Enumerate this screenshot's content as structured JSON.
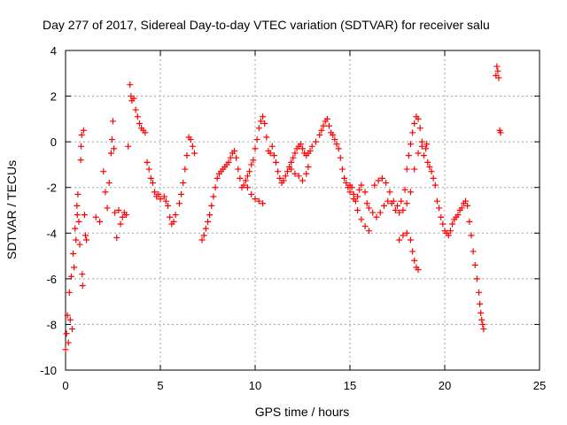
{
  "chart_data": {
    "type": "scatter",
    "title": "Day 277 of 2017, Sidereal Day-to-day VTEC variation (SDTVAR) for receiver salu",
    "xlabel": "GPS time / hours",
    "ylabel": "SDTVAR / TECUs",
    "xlim": [
      0,
      25
    ],
    "ylim": [
      -10,
      4
    ],
    "xticks": [
      0,
      5,
      10,
      15,
      20,
      25
    ],
    "yticks": [
      -10,
      -8,
      -6,
      -4,
      -2,
      0,
      2,
      4
    ],
    "grid": true,
    "marker": "+",
    "color": "#ff0000",
    "series": [
      {
        "name": "SDTVAR",
        "points": [
          [
            0.0,
            -9.1
          ],
          [
            0.05,
            -8.4
          ],
          [
            0.1,
            -7.6
          ],
          [
            0.15,
            -8.8
          ],
          [
            0.2,
            -6.6
          ],
          [
            0.25,
            -7.8
          ],
          [
            0.3,
            -5.9
          ],
          [
            0.35,
            -8.2
          ],
          [
            0.4,
            -4.9
          ],
          [
            0.45,
            -5.5
          ],
          [
            0.5,
            -3.8
          ],
          [
            0.55,
            -4.3
          ],
          [
            0.6,
            -2.8
          ],
          [
            0.62,
            -3.2
          ],
          [
            0.65,
            -2.3
          ],
          [
            0.7,
            -3.5
          ],
          [
            0.75,
            -4.5
          ],
          [
            0.8,
            -0.8
          ],
          [
            0.82,
            -0.2
          ],
          [
            0.85,
            0.3
          ],
          [
            0.88,
            -5.8
          ],
          [
            0.9,
            -6.3
          ],
          [
            0.95,
            0.5
          ],
          [
            1.0,
            -3.2
          ],
          [
            1.05,
            -4.1
          ],
          [
            1.1,
            -4.3
          ],
          [
            1.6,
            -3.3
          ],
          [
            1.8,
            -3.5
          ],
          [
            2.0,
            -1.3
          ],
          [
            2.1,
            -2.2
          ],
          [
            2.2,
            -2.9
          ],
          [
            2.3,
            -1.8
          ],
          [
            2.4,
            -0.5
          ],
          [
            2.45,
            0.1
          ],
          [
            2.5,
            0.9
          ],
          [
            2.55,
            -0.3
          ],
          [
            2.6,
            -3.1
          ],
          [
            2.7,
            -4.2
          ],
          [
            2.8,
            -3.0
          ],
          [
            2.9,
            -3.6
          ],
          [
            3.0,
            -3.3
          ],
          [
            3.1,
            -3.1
          ],
          [
            3.2,
            -3.2
          ],
          [
            3.3,
            -0.2
          ],
          [
            3.4,
            2.5
          ],
          [
            3.45,
            2.0
          ],
          [
            3.5,
            1.8
          ],
          [
            3.6,
            1.9
          ],
          [
            3.7,
            1.4
          ],
          [
            3.8,
            1.1
          ],
          [
            3.9,
            0.8
          ],
          [
            4.0,
            0.6
          ],
          [
            4.1,
            0.5
          ],
          [
            4.2,
            0.4
          ],
          [
            4.3,
            -0.9
          ],
          [
            4.4,
            -1.2
          ],
          [
            4.5,
            -1.6
          ],
          [
            4.6,
            -1.8
          ],
          [
            4.7,
            -2.2
          ],
          [
            4.8,
            -2.4
          ],
          [
            4.9,
            -2.3
          ],
          [
            5.0,
            -2.5
          ],
          [
            5.2,
            -2.4
          ],
          [
            5.3,
            -2.6
          ],
          [
            5.4,
            -2.8
          ],
          [
            5.5,
            -3.3
          ],
          [
            5.6,
            -3.6
          ],
          [
            5.7,
            -3.5
          ],
          [
            5.8,
            -3.2
          ],
          [
            6.0,
            -2.7
          ],
          [
            6.1,
            -2.3
          ],
          [
            6.2,
            -1.8
          ],
          [
            6.3,
            -1.2
          ],
          [
            6.4,
            -0.6
          ],
          [
            6.5,
            0.2
          ],
          [
            6.6,
            0.1
          ],
          [
            6.7,
            -0.2
          ],
          [
            6.8,
            -0.5
          ],
          [
            7.2,
            -4.3
          ],
          [
            7.3,
            -4.1
          ],
          [
            7.4,
            -3.8
          ],
          [
            7.5,
            -3.5
          ],
          [
            7.6,
            -3.2
          ],
          [
            7.7,
            -2.8
          ],
          [
            7.8,
            -2.4
          ],
          [
            7.9,
            -2.0
          ],
          [
            8.0,
            -1.6
          ],
          [
            8.1,
            -1.4
          ],
          [
            8.2,
            -1.3
          ],
          [
            8.3,
            -1.2
          ],
          [
            8.4,
            -1.1
          ],
          [
            8.5,
            -1.0
          ],
          [
            8.6,
            -0.9
          ],
          [
            8.7,
            -0.7
          ],
          [
            8.8,
            -0.5
          ],
          [
            8.9,
            -0.4
          ],
          [
            9.0,
            -0.7
          ],
          [
            9.1,
            -1.2
          ],
          [
            9.2,
            -1.6
          ],
          [
            9.3,
            -2.0
          ],
          [
            9.4,
            -1.9
          ],
          [
            9.5,
            -1.7
          ],
          [
            9.6,
            -1.5
          ],
          [
            9.7,
            -1.3
          ],
          [
            9.8,
            -1.0
          ],
          [
            9.9,
            -0.8
          ],
          [
            10.0,
            -0.3
          ],
          [
            10.1,
            0.1
          ],
          [
            10.2,
            0.6
          ],
          [
            10.3,
            0.9
          ],
          [
            10.4,
            1.1
          ],
          [
            10.5,
            0.8
          ],
          [
            10.6,
            0.2
          ],
          [
            10.7,
            -0.4
          ],
          [
            10.8,
            -0.5
          ],
          [
            10.9,
            -0.2
          ],
          [
            11.0,
            -0.6
          ],
          [
            11.1,
            -0.9
          ],
          [
            11.2,
            -1.3
          ],
          [
            11.3,
            -1.6
          ],
          [
            11.4,
            -1.8
          ],
          [
            11.5,
            -1.7
          ],
          [
            11.6,
            -1.5
          ],
          [
            11.7,
            -1.3
          ],
          [
            11.8,
            -1.1
          ],
          [
            11.9,
            -0.9
          ],
          [
            12.0,
            -0.7
          ],
          [
            12.1,
            -0.5
          ],
          [
            12.2,
            -0.3
          ],
          [
            12.3,
            -0.2
          ],
          [
            12.4,
            -0.1
          ],
          [
            12.5,
            -0.3
          ],
          [
            12.6,
            -0.5
          ],
          [
            12.7,
            -0.6
          ],
          [
            12.8,
            -0.5
          ],
          [
            12.9,
            -0.4
          ],
          [
            13.0,
            -0.2
          ],
          [
            13.2,
            0.0
          ],
          [
            13.4,
            0.3
          ],
          [
            13.5,
            0.5
          ],
          [
            13.6,
            0.7
          ],
          [
            13.7,
            0.9
          ],
          [
            13.8,
            1.0
          ],
          [
            13.9,
            0.7
          ],
          [
            14.0,
            0.4
          ],
          [
            14.1,
            0.3
          ],
          [
            14.2,
            0.1
          ],
          [
            14.3,
            -0.1
          ],
          [
            14.4,
            -0.3
          ],
          [
            14.5,
            -0.7
          ],
          [
            14.6,
            -1.2
          ],
          [
            14.7,
            -1.6
          ],
          [
            14.8,
            -1.8
          ],
          [
            14.9,
            -2.0
          ],
          [
            15.0,
            -2.2
          ],
          [
            15.1,
            -2.0
          ],
          [
            15.2,
            -2.3
          ],
          [
            15.3,
            -2.6
          ],
          [
            15.4,
            -2.4
          ],
          [
            15.5,
            -2.1
          ],
          [
            15.6,
            -1.9
          ],
          [
            15.8,
            -2.2
          ],
          [
            15.9,
            -2.7
          ],
          [
            16.0,
            -2.9
          ],
          [
            16.2,
            -3.1
          ],
          [
            16.4,
            -3.3
          ],
          [
            16.6,
            -3.1
          ],
          [
            16.8,
            -2.8
          ],
          [
            17.0,
            -2.6
          ],
          [
            17.2,
            -2.7
          ],
          [
            17.4,
            -3.0
          ],
          [
            17.6,
            -3.1
          ],
          [
            17.8,
            -3.0
          ],
          [
            18.0,
            -2.7
          ],
          [
            18.2,
            -2.2
          ],
          [
            18.4,
            -1.2
          ],
          [
            18.6,
            -0.5
          ],
          [
            18.8,
            0.0
          ],
          [
            9.6,
            -2.0
          ],
          [
            9.8,
            -2.3
          ],
          [
            10.0,
            -2.5
          ],
          [
            10.2,
            -2.6
          ],
          [
            10.4,
            -2.7
          ],
          [
            11.9,
            -1.2
          ],
          [
            12.1,
            -1.4
          ],
          [
            12.3,
            -1.5
          ],
          [
            12.5,
            -1.7
          ],
          [
            12.7,
            -1.4
          ],
          [
            12.8,
            -1.1
          ],
          [
            16.3,
            -1.9
          ],
          [
            16.5,
            -1.7
          ],
          [
            16.7,
            -1.6
          ],
          [
            16.9,
            -1.8
          ],
          [
            17.1,
            -2.2
          ],
          [
            17.3,
            -2.6
          ],
          [
            17.5,
            -2.8
          ],
          [
            17.7,
            -2.6
          ],
          [
            17.9,
            -2.1
          ],
          [
            15.0,
            -1.9
          ],
          [
            15.2,
            -2.5
          ],
          [
            15.4,
            -3.0
          ],
          [
            15.6,
            -3.4
          ],
          [
            15.8,
            -3.7
          ],
          [
            16.0,
            -3.9
          ],
          [
            17.6,
            -4.3
          ],
          [
            17.8,
            -4.1
          ],
          [
            18.0,
            -4.0
          ],
          [
            18.2,
            -4.3
          ],
          [
            18.3,
            -4.8
          ],
          [
            18.4,
            -5.2
          ],
          [
            18.5,
            -5.5
          ],
          [
            18.6,
            -5.6
          ],
          [
            18.0,
            -1.2
          ],
          [
            18.1,
            -0.6
          ],
          [
            18.2,
            -0.1
          ],
          [
            18.3,
            0.4
          ],
          [
            18.4,
            0.8
          ],
          [
            18.5,
            1.1
          ],
          [
            18.6,
            1.0
          ],
          [
            18.7,
            0.6
          ],
          [
            18.8,
            -0.2
          ],
          [
            18.9,
            -0.6
          ],
          [
            19.0,
            -0.3
          ],
          [
            19.05,
            -0.1
          ],
          [
            19.1,
            -0.9
          ],
          [
            19.2,
            -1.1
          ],
          [
            19.3,
            -1.3
          ],
          [
            19.4,
            -1.6
          ],
          [
            19.5,
            -1.9
          ],
          [
            19.6,
            -2.6
          ],
          [
            19.7,
            -2.9
          ],
          [
            19.8,
            -3.3
          ],
          [
            19.9,
            -3.6
          ],
          [
            20.0,
            -3.9
          ],
          [
            20.1,
            -4.0
          ],
          [
            20.2,
            -4.1
          ],
          [
            20.3,
            -3.9
          ],
          [
            20.4,
            -3.6
          ],
          [
            20.5,
            -3.4
          ],
          [
            20.6,
            -3.3
          ],
          [
            20.7,
            -3.2
          ],
          [
            20.8,
            -3.0
          ],
          [
            20.9,
            -2.9
          ],
          [
            21.0,
            -2.7
          ],
          [
            21.1,
            -2.6
          ],
          [
            21.2,
            -2.8
          ],
          [
            21.3,
            -3.5
          ],
          [
            21.4,
            -4.1
          ],
          [
            21.5,
            -4.8
          ],
          [
            21.6,
            -5.4
          ],
          [
            21.7,
            -6.0
          ],
          [
            21.8,
            -6.6
          ],
          [
            21.85,
            -7.1
          ],
          [
            21.9,
            -7.5
          ],
          [
            21.95,
            -7.8
          ],
          [
            22.0,
            -8.0
          ],
          [
            22.05,
            -8.2
          ],
          [
            22.7,
            2.9
          ],
          [
            22.75,
            3.3
          ],
          [
            22.8,
            3.1
          ],
          [
            22.85,
            2.8
          ],
          [
            22.9,
            0.5
          ],
          [
            22.95,
            0.4
          ]
        ]
      }
    ]
  }
}
